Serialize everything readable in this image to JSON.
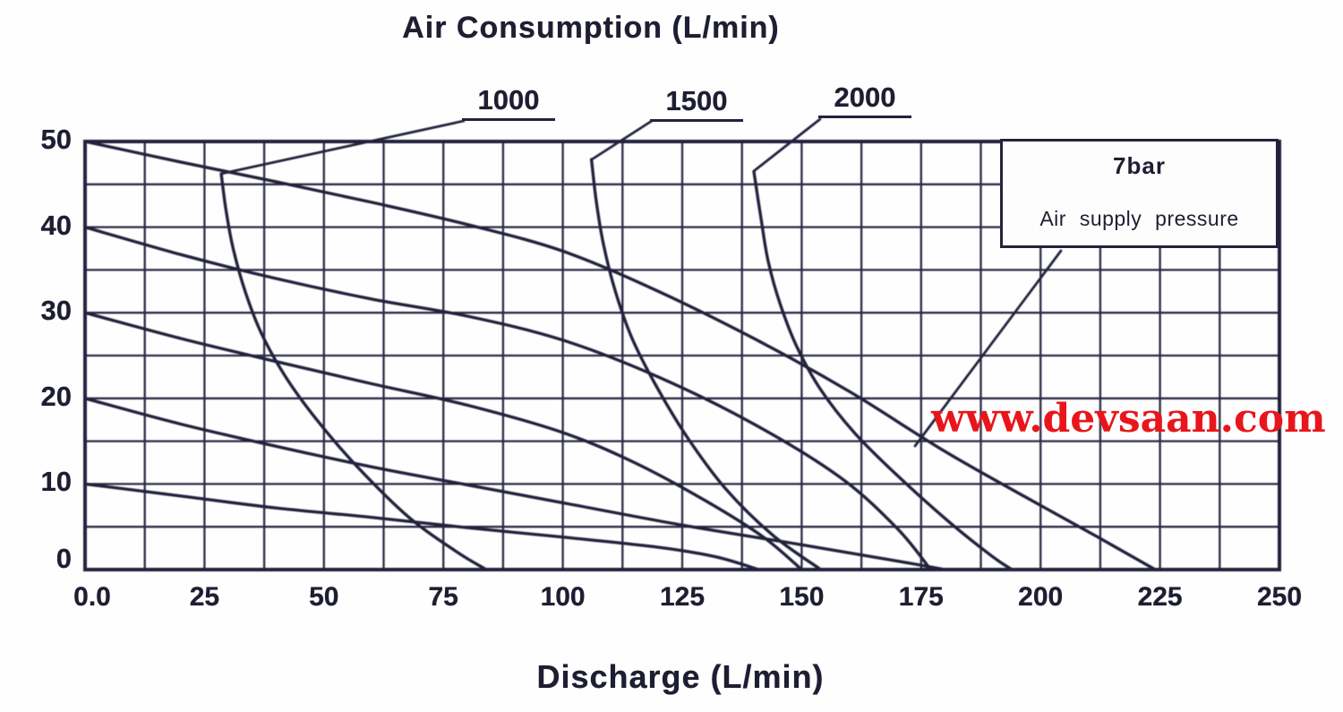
{
  "watermark": {
    "text": "www.devsaan.com",
    "color": "#e8161c"
  },
  "chart_data": {
    "type": "line",
    "title": "Air Consumption (L/min)",
    "xlabel": "Discharge (L/min)",
    "ylabel": "",
    "xlim": [
      0,
      250
    ],
    "ylim": [
      0,
      50
    ],
    "x_ticks": {
      "values": [
        0,
        25,
        50,
        75,
        100,
        125,
        150,
        175,
        200,
        225,
        250
      ],
      "labels": [
        "0.0",
        "25",
        "50",
        "75",
        "100",
        "125",
        "150",
        "175",
        "200",
        "225",
        "250"
      ]
    },
    "y_ticks": {
      "values": [
        0,
        10,
        20,
        30,
        40,
        50
      ],
      "labels": [
        "0",
        "10",
        "20",
        "30",
        "40",
        "50"
      ]
    },
    "grid": {
      "on": true,
      "x_step": 12.5,
      "y_step": 5
    },
    "colors": {
      "line": "#23233c",
      "grid": "#2b2b45",
      "text": "#1e1e32"
    },
    "annotation_box": {
      "line1": "7bar",
      "line2": "Air supply pressure",
      "target": "performance-7bar"
    },
    "air_curve_labels": [
      {
        "text": "1000",
        "series": "air-1000"
      },
      {
        "text": "1500",
        "series": "air-1500"
      },
      {
        "text": "2000",
        "series": "air-2000"
      }
    ],
    "series": [
      {
        "id": "performance-7bar",
        "name": "Performance curve at 7 bar air supply pressure",
        "group": "performance",
        "points": [
          [
            0,
            50
          ],
          [
            20,
            47.6
          ],
          [
            40,
            45.3
          ],
          [
            60,
            42.9
          ],
          [
            80,
            40.3
          ],
          [
            100,
            37.2
          ],
          [
            120,
            32.5
          ],
          [
            140,
            27
          ],
          [
            160,
            20.8
          ],
          [
            180,
            13.8
          ],
          [
            200,
            7.5
          ],
          [
            212,
            3.8
          ],
          [
            224,
            0
          ]
        ]
      },
      {
        "id": "performance-2",
        "name": "Performance curve 2",
        "group": "performance",
        "points": [
          [
            0,
            40
          ],
          [
            20,
            36.8
          ],
          [
            40,
            34
          ],
          [
            60,
            31.6
          ],
          [
            80,
            29.6
          ],
          [
            100,
            26.8
          ],
          [
            120,
            22.5
          ],
          [
            140,
            17
          ],
          [
            158,
            10.8
          ],
          [
            170,
            4.8
          ],
          [
            177,
            0
          ]
        ]
      },
      {
        "id": "performance-3",
        "name": "Performance curve 3",
        "group": "performance",
        "points": [
          [
            0,
            30
          ],
          [
            20,
            27
          ],
          [
            40,
            24.3
          ],
          [
            60,
            21.7
          ],
          [
            80,
            19.2
          ],
          [
            100,
            16
          ],
          [
            115,
            12.5
          ],
          [
            130,
            8
          ],
          [
            142,
            3.8
          ],
          [
            150,
            0
          ]
        ]
      },
      {
        "id": "performance-4",
        "name": "Performance curve 4",
        "group": "performance",
        "points": [
          [
            0,
            20
          ],
          [
            20,
            17
          ],
          [
            40,
            14.4
          ],
          [
            60,
            12
          ],
          [
            80,
            9.9
          ],
          [
            100,
            7.8
          ],
          [
            125,
            5.2
          ],
          [
            150,
            2.9
          ],
          [
            170,
            1
          ],
          [
            180,
            0
          ]
        ]
      },
      {
        "id": "performance-5",
        "name": "Performance curve 5",
        "group": "performance",
        "points": [
          [
            0,
            10
          ],
          [
            20,
            8.6
          ],
          [
            40,
            7.2
          ],
          [
            60,
            6.1
          ],
          [
            80,
            4.9
          ],
          [
            100,
            3.8
          ],
          [
            120,
            2.6
          ],
          [
            132,
            1.5
          ],
          [
            141,
            0
          ]
        ]
      },
      {
        "id": "air-1000",
        "name": "Air consumption 1000 L/min",
        "group": "air-consumption",
        "points": [
          [
            28.5,
            46.2
          ],
          [
            29.5,
            42
          ],
          [
            31,
            37.5
          ],
          [
            33.5,
            32.5
          ],
          [
            37,
            27.5
          ],
          [
            42,
            22.5
          ],
          [
            48.5,
            17.5
          ],
          [
            57,
            12
          ],
          [
            68,
            6
          ],
          [
            78,
            2
          ],
          [
            84,
            0
          ]
        ]
      },
      {
        "id": "air-1500",
        "name": "Air consumption 1500 L/min",
        "group": "air-consumption",
        "points": [
          [
            106,
            47.9
          ],
          [
            107,
            43
          ],
          [
            108.5,
            38
          ],
          [
            111,
            32.5
          ],
          [
            114.5,
            27
          ],
          [
            119.5,
            21.5
          ],
          [
            126,
            15.5
          ],
          [
            134,
            9.5
          ],
          [
            144,
            4
          ],
          [
            154,
            0
          ]
        ]
      },
      {
        "id": "air-2000",
        "name": "Air consumption 2000 L/min",
        "group": "air-consumption",
        "points": [
          [
            140,
            46.5
          ],
          [
            141.5,
            41
          ],
          [
            143,
            36
          ],
          [
            145.5,
            31
          ],
          [
            149,
            26
          ],
          [
            154,
            21
          ],
          [
            161,
            16
          ],
          [
            170,
            11
          ],
          [
            181,
            5.5
          ],
          [
            190,
            1.5
          ],
          [
            194,
            0
          ]
        ]
      }
    ]
  }
}
